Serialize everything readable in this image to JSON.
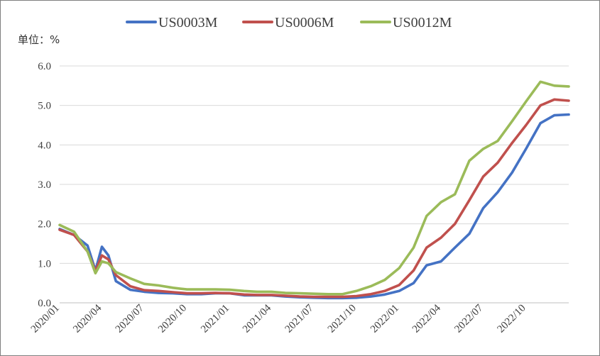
{
  "chart_data": {
    "type": "line",
    "unit_label": "单位：%",
    "ylim": [
      0,
      6
    ],
    "yticks": [
      "0.0",
      "1.0",
      "2.0",
      "3.0",
      "4.0",
      "5.0",
      "6.0"
    ],
    "x_range": [
      "2020-01",
      "2023-01"
    ],
    "xticks": [
      "2020/01",
      "2020/04",
      "2020/07",
      "2020/10",
      "2021/01",
      "2021/04",
      "2021/07",
      "2021/10",
      "2022/01",
      "2022/04",
      "2022/07",
      "2022/10"
    ],
    "grid": "horizontal",
    "legend_position": "top",
    "series": [
      {
        "name": "US0003M",
        "color": "#4472C4",
        "points": [
          [
            "2020-01",
            1.87
          ],
          [
            "2020-02",
            1.72
          ],
          [
            "2020-03",
            1.45
          ],
          [
            "2020-03-18",
            0.82
          ],
          [
            "2020-04",
            1.42
          ],
          [
            "2020-04-15",
            1.2
          ],
          [
            "2020-05",
            0.55
          ],
          [
            "2020-06",
            0.33
          ],
          [
            "2020-07",
            0.28
          ],
          [
            "2020-08",
            0.25
          ],
          [
            "2020-09",
            0.24
          ],
          [
            "2020-10",
            0.22
          ],
          [
            "2020-11",
            0.22
          ],
          [
            "2020-12",
            0.24
          ],
          [
            "2021-01",
            0.24
          ],
          [
            "2021-02",
            0.19
          ],
          [
            "2021-03",
            0.19
          ],
          [
            "2021-04",
            0.19
          ],
          [
            "2021-05",
            0.16
          ],
          [
            "2021-06",
            0.14
          ],
          [
            "2021-07",
            0.13
          ],
          [
            "2021-08",
            0.12
          ],
          [
            "2021-09",
            0.12
          ],
          [
            "2021-10",
            0.13
          ],
          [
            "2021-11",
            0.16
          ],
          [
            "2021-12",
            0.21
          ],
          [
            "2022-01",
            0.3
          ],
          [
            "2022-02",
            0.5
          ],
          [
            "2022-03",
            0.95
          ],
          [
            "2022-04",
            1.05
          ],
          [
            "2022-05",
            1.4
          ],
          [
            "2022-06",
            1.75
          ],
          [
            "2022-07",
            2.4
          ],
          [
            "2022-08",
            2.8
          ],
          [
            "2022-09",
            3.3
          ],
          [
            "2022-10",
            3.9
          ],
          [
            "2022-11",
            4.55
          ],
          [
            "2022-12",
            4.75
          ],
          [
            "2023-01",
            4.77
          ]
        ]
      },
      {
        "name": "US0006M",
        "color": "#C0504D",
        "points": [
          [
            "2020-01",
            1.85
          ],
          [
            "2020-02",
            1.72
          ],
          [
            "2020-03",
            1.3
          ],
          [
            "2020-03-18",
            0.8
          ],
          [
            "2020-04",
            1.2
          ],
          [
            "2020-04-15",
            1.1
          ],
          [
            "2020-05",
            0.7
          ],
          [
            "2020-06",
            0.42
          ],
          [
            "2020-07",
            0.32
          ],
          [
            "2020-08",
            0.3
          ],
          [
            "2020-09",
            0.27
          ],
          [
            "2020-10",
            0.24
          ],
          [
            "2020-11",
            0.24
          ],
          [
            "2020-12",
            0.25
          ],
          [
            "2021-01",
            0.24
          ],
          [
            "2021-02",
            0.21
          ],
          [
            "2021-03",
            0.2
          ],
          [
            "2021-04",
            0.2
          ],
          [
            "2021-05",
            0.18
          ],
          [
            "2021-06",
            0.16
          ],
          [
            "2021-07",
            0.15
          ],
          [
            "2021-08",
            0.15
          ],
          [
            "2021-09",
            0.15
          ],
          [
            "2021-10",
            0.17
          ],
          [
            "2021-11",
            0.22
          ],
          [
            "2021-12",
            0.3
          ],
          [
            "2022-01",
            0.45
          ],
          [
            "2022-02",
            0.82
          ],
          [
            "2022-03",
            1.4
          ],
          [
            "2022-04",
            1.65
          ],
          [
            "2022-05",
            2.0
          ],
          [
            "2022-06",
            2.6
          ],
          [
            "2022-07",
            3.2
          ],
          [
            "2022-08",
            3.55
          ],
          [
            "2022-09",
            4.05
          ],
          [
            "2022-10",
            4.5
          ],
          [
            "2022-11",
            5.0
          ],
          [
            "2022-12",
            5.15
          ],
          [
            "2023-01",
            5.12
          ]
        ]
      },
      {
        "name": "US0012M",
        "color": "#9BBB59",
        "points": [
          [
            "2020-01",
            1.97
          ],
          [
            "2020-02",
            1.8
          ],
          [
            "2020-03",
            1.3
          ],
          [
            "2020-03-18",
            0.75
          ],
          [
            "2020-04",
            1.05
          ],
          [
            "2020-04-15",
            1.0
          ],
          [
            "2020-05",
            0.78
          ],
          [
            "2020-06",
            0.62
          ],
          [
            "2020-07",
            0.48
          ],
          [
            "2020-08",
            0.44
          ],
          [
            "2020-09",
            0.38
          ],
          [
            "2020-10",
            0.34
          ],
          [
            "2020-11",
            0.34
          ],
          [
            "2020-12",
            0.34
          ],
          [
            "2021-01",
            0.33
          ],
          [
            "2021-02",
            0.3
          ],
          [
            "2021-03",
            0.28
          ],
          [
            "2021-04",
            0.28
          ],
          [
            "2021-05",
            0.25
          ],
          [
            "2021-06",
            0.24
          ],
          [
            "2021-07",
            0.23
          ],
          [
            "2021-08",
            0.22
          ],
          [
            "2021-09",
            0.22
          ],
          [
            "2021-10",
            0.3
          ],
          [
            "2021-11",
            0.42
          ],
          [
            "2021-12",
            0.58
          ],
          [
            "2022-01",
            0.88
          ],
          [
            "2022-02",
            1.4
          ],
          [
            "2022-03",
            2.2
          ],
          [
            "2022-04",
            2.55
          ],
          [
            "2022-05",
            2.75
          ],
          [
            "2022-06",
            3.6
          ],
          [
            "2022-07",
            3.9
          ],
          [
            "2022-08",
            4.1
          ],
          [
            "2022-09",
            4.6
          ],
          [
            "2022-10",
            5.1
          ],
          [
            "2022-11",
            5.6
          ],
          [
            "2022-12",
            5.5
          ],
          [
            "2023-01",
            5.48
          ]
        ]
      }
    ]
  }
}
